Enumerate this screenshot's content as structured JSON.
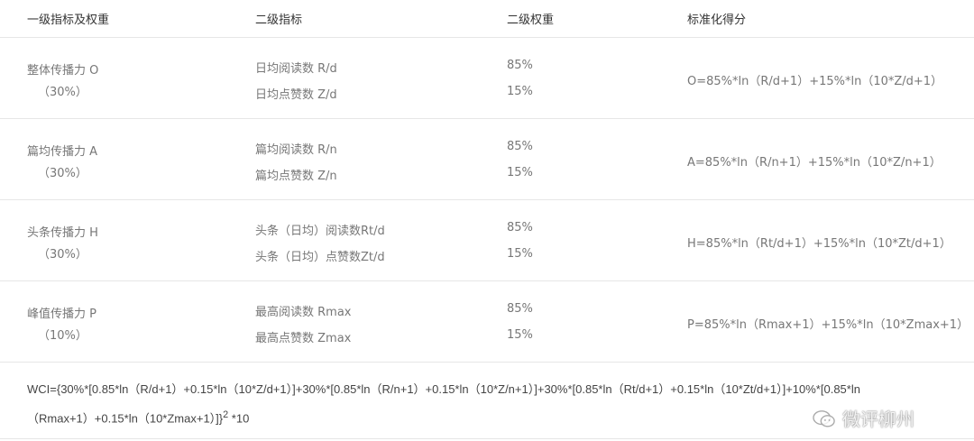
{
  "header": [
    "一级指标及权重",
    "二级指标",
    "二级权重",
    "标准化得分"
  ],
  "rows": [
    {
      "name": "整体传播力 O",
      "weight": "（30%）",
      "sub1": "日均阅读数 R/d",
      "sub2": "日均点赞数 Z/d",
      "w1": "85%",
      "w2": "15%",
      "score": "O=85%*ln（R/d+1）+15%*ln（10*Z/d+1）"
    },
    {
      "name": "篇均传播力 A",
      "weight": "（30%）",
      "sub1": "篇均阅读数 R/n",
      "sub2": "篇均点赞数 Z/n",
      "w1": "85%",
      "w2": "15%",
      "score": "A=85%*ln（R/n+1）+15%*ln（10*Z/n+1）"
    },
    {
      "name": "头条传播力 H",
      "weight": "（30%）",
      "sub1": "头条（日均）阅读数Rt/d",
      "sub2": "头条（日均）点赞数Zt/d",
      "w1": "85%",
      "w2": "15%",
      "score": "H=85%*ln（Rt/d+1）+15%*ln（10*Zt/d+1）"
    },
    {
      "name": "峰值传播力 P",
      "weight": "（10%）",
      "sub1": "最高阅读数 Rmax",
      "sub2": "最高点赞数 Zmax",
      "w1": "85%",
      "w2": "15%",
      "score": "P=85%*ln（Rmax+1）+15%*ln（10*Zmax+1）"
    }
  ],
  "formula": {
    "main": "WCI={30%*[0.85*ln（R/d+1）+0.15*ln（10*Z/d+1）]+30%*[0.85*ln（R/n+1）+0.15*ln（10*Z/n+1）]+30%*[0.85*ln（Rt/d+1）+0.15*ln（10*Zt/d+1）]+10%*[0.85*ln（Rmax+1）+0.15*ln（10*Zmax+1）]}",
    "exp": "2",
    "tail": " *10"
  },
  "watermark": {
    "text": "微评柳州",
    "icon": "wechat-icon"
  }
}
